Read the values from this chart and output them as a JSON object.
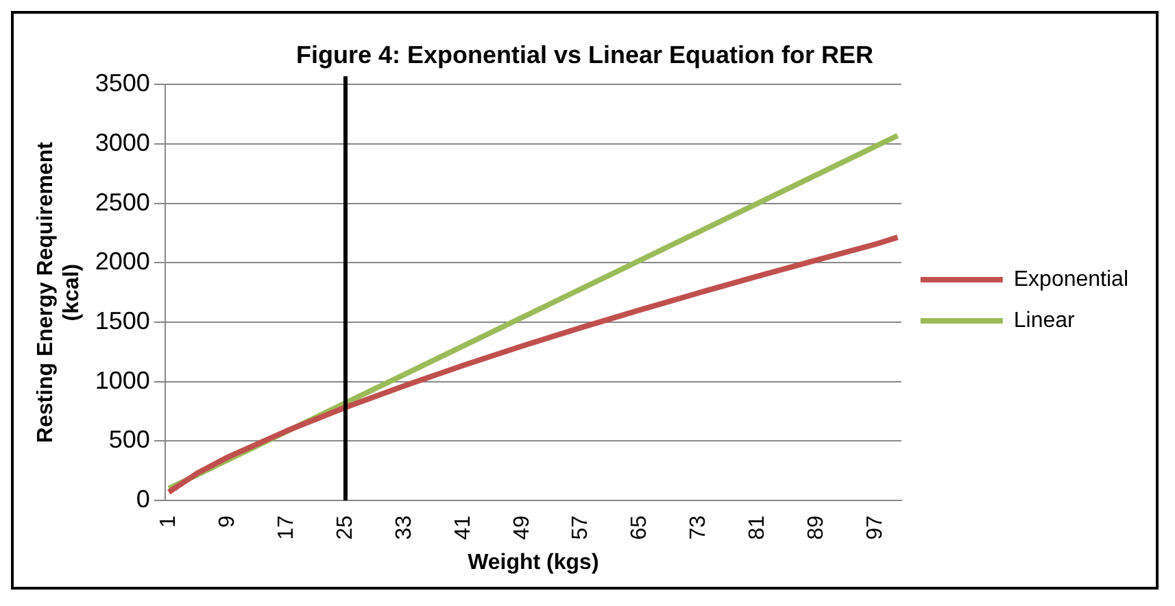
{
  "chart_data": {
    "type": "line",
    "title": "Figure 4: Exponential vs Linear Equation for RER",
    "xlabel": "Weight (kgs)",
    "ylabel": "Resting Energy Requirement (kcal)",
    "xlim": [
      0.5,
      100.5
    ],
    "xticks": [
      1,
      9,
      17,
      25,
      33,
      41,
      49,
      57,
      65,
      73,
      81,
      89,
      97
    ],
    "ylim": [
      0,
      3500
    ],
    "yticks": [
      0,
      500,
      1000,
      1500,
      2000,
      2500,
      3000,
      3500
    ],
    "grid": "y",
    "legend": "right",
    "marker": "none",
    "series": [
      {
        "name": "Exponential",
        "color": "#c0504d",
        "x": [
          1,
          5,
          9,
          17,
          25,
          33,
          41,
          49,
          57,
          65,
          73,
          81,
          89,
          97,
          100
        ],
        "values": [
          70,
          234,
          364,
          585,
          783,
          965,
          1136,
          1299,
          1454,
          1603,
          1747,
          1887,
          2023,
          2156,
          2214
        ]
      },
      {
        "name": "Linear",
        "color": "#9bbb59",
        "x": [
          1,
          100
        ],
        "values": [
          100,
          3070
        ]
      }
    ],
    "ref_lines": [
      {
        "axis": "x",
        "value": 25,
        "color": "#000000"
      }
    ]
  }
}
